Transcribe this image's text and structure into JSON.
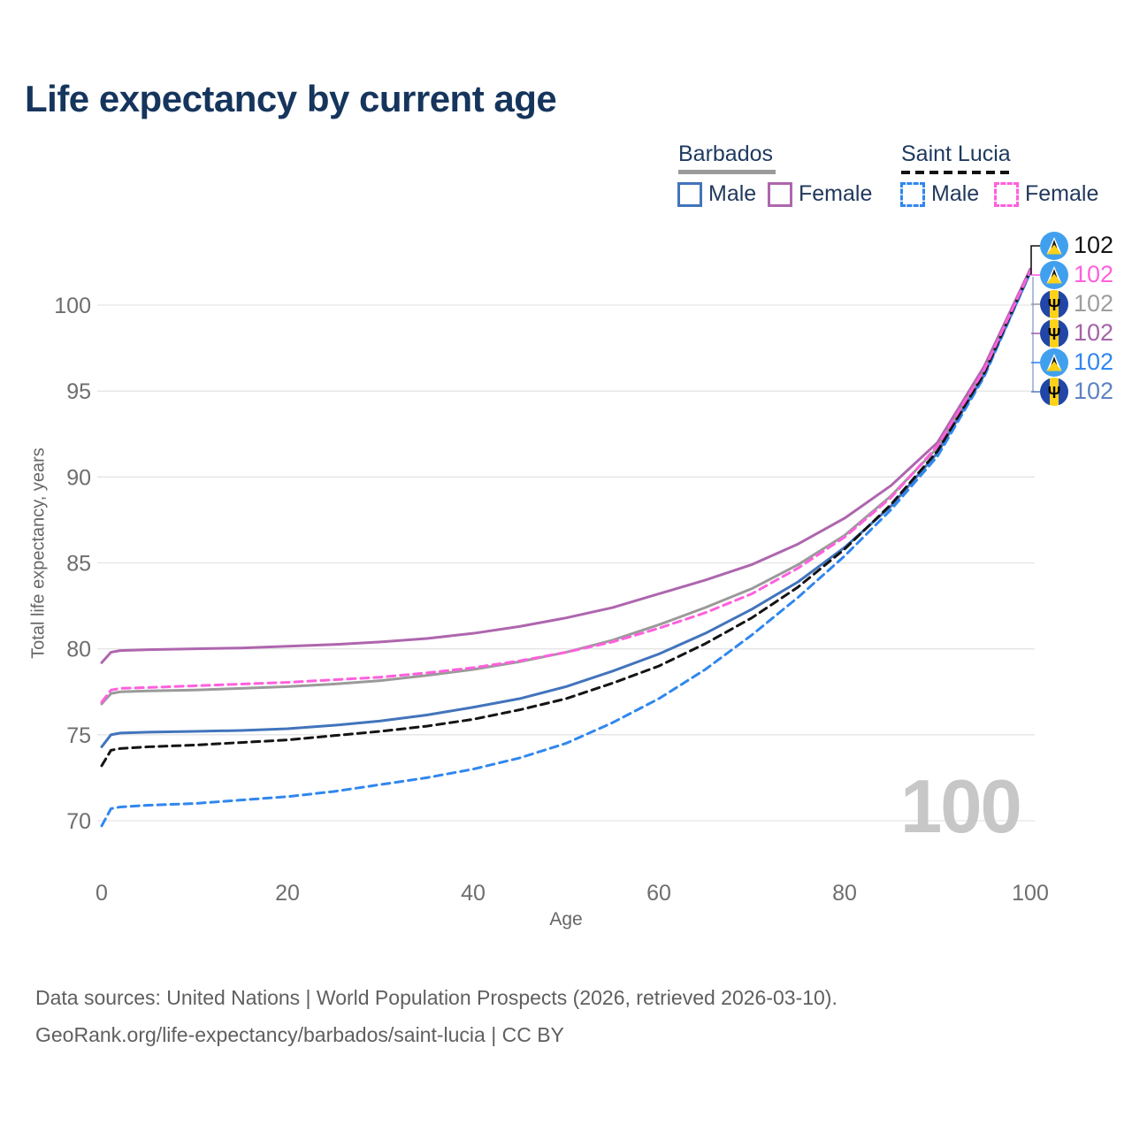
{
  "title": "Life expectancy by current age",
  "legend": {
    "groups": [
      {
        "label": "Barbados",
        "line_style": "solid",
        "underline_color": "#9a9a9a",
        "items": [
          {
            "label": "Male",
            "color": "#4274bc"
          },
          {
            "label": "Female",
            "color": "#ae66ae"
          }
        ]
      },
      {
        "label": "Saint Lucia",
        "line_style": "dashed",
        "underline_color": "#121212",
        "items": [
          {
            "label": "Male",
            "color": "#3087ee"
          },
          {
            "label": "Female",
            "color": "#ff60dd"
          }
        ]
      }
    ]
  },
  "watermark": "100",
  "end_labels": [
    {
      "flag": "saint-lucia",
      "series": "Saint Lucia total",
      "value": "102",
      "color": "#141414"
    },
    {
      "flag": "saint-lucia",
      "series": "Saint Lucia female",
      "value": "102",
      "color": "#ff60dd"
    },
    {
      "flag": "barbados",
      "series": "Barbados total",
      "value": "102",
      "color": "#9e9e9e"
    },
    {
      "flag": "barbados",
      "series": "Barbados female",
      "value": "102",
      "color": "#a463a8"
    },
    {
      "flag": "saint-lucia",
      "series": "Saint Lucia male",
      "value": "102",
      "color": "#3087ee"
    },
    {
      "flag": "barbados",
      "series": "Barbados male",
      "value": "102",
      "color": "#5d82c4"
    }
  ],
  "footer": {
    "line1": "Data sources: United Nations | World Population Prospects (2026, retrieved 2026-03-10).",
    "line2": "GeoRank.org/life-expectancy/barbados/saint-lucia | CC BY"
  },
  "chart_data": {
    "type": "line",
    "title": "Life expectancy by current age",
    "xlabel": "Age",
    "ylabel": "Total life expectancy, years",
    "xlim": [
      0,
      100
    ],
    "ylim": [
      70,
      100
    ],
    "grid": true,
    "xticks": [
      0,
      20,
      40,
      60,
      80,
      100
    ],
    "yticks": [
      70,
      75,
      80,
      85,
      90,
      95,
      100
    ],
    "legend_position": "top-right",
    "x": [
      0,
      1,
      2,
      5,
      10,
      15,
      20,
      25,
      30,
      35,
      40,
      45,
      50,
      55,
      60,
      65,
      70,
      75,
      80,
      85,
      90,
      95,
      100
    ],
    "series": [
      {
        "name": "Barbados total",
        "country": "Barbados",
        "sex": "both",
        "color": "#9a9a9a",
        "dash": false,
        "values": [
          76.8,
          77.4,
          77.5,
          77.55,
          77.6,
          77.7,
          77.8,
          77.95,
          78.15,
          78.45,
          78.8,
          79.25,
          79.8,
          80.5,
          81.4,
          82.4,
          83.5,
          84.9,
          86.6,
          88.9,
          91.7,
          96.1,
          101.9
        ]
      },
      {
        "name": "Barbados male",
        "country": "Barbados",
        "sex": "male",
        "color": "#4274bc",
        "dash": false,
        "values": [
          74.3,
          75.0,
          75.1,
          75.15,
          75.2,
          75.25,
          75.35,
          75.55,
          75.8,
          76.15,
          76.6,
          77.1,
          77.8,
          78.7,
          79.7,
          80.9,
          82.3,
          83.9,
          85.9,
          88.3,
          91.4,
          95.9,
          101.9
        ]
      },
      {
        "name": "Barbados female",
        "country": "Barbados",
        "sex": "female",
        "color": "#ae66ae",
        "dash": false,
        "values": [
          79.2,
          79.8,
          79.9,
          79.95,
          80.0,
          80.05,
          80.15,
          80.25,
          80.4,
          80.6,
          80.9,
          81.3,
          81.8,
          82.4,
          83.2,
          84.0,
          84.9,
          86.1,
          87.6,
          89.5,
          92.0,
          96.4,
          102.1
        ]
      },
      {
        "name": "Saint Lucia male",
        "country": "Saint Lucia",
        "sex": "male",
        "color": "#3087ee",
        "dash": true,
        "values": [
          69.7,
          70.7,
          70.8,
          70.9,
          71.0,
          71.2,
          71.4,
          71.7,
          72.1,
          72.5,
          73.0,
          73.65,
          74.5,
          75.7,
          77.1,
          78.8,
          80.8,
          83.0,
          85.4,
          88.1,
          91.2,
          95.8,
          101.9
        ]
      },
      {
        "name": "Saint Lucia total",
        "country": "Saint Lucia",
        "sex": "both",
        "color": "#141414",
        "dash": true,
        "values": [
          73.2,
          74.1,
          74.2,
          74.3,
          74.4,
          74.55,
          74.7,
          74.95,
          75.2,
          75.5,
          75.9,
          76.45,
          77.1,
          78.0,
          79.0,
          80.3,
          81.8,
          83.6,
          85.8,
          88.4,
          91.5,
          96.0,
          102.0
        ]
      },
      {
        "name": "Saint Lucia female",
        "country": "Saint Lucia",
        "sex": "female",
        "color": "#ff60dd",
        "dash": true,
        "values": [
          76.9,
          77.6,
          77.7,
          77.75,
          77.85,
          77.95,
          78.05,
          78.2,
          78.35,
          78.6,
          78.9,
          79.3,
          79.8,
          80.4,
          81.2,
          82.1,
          83.2,
          84.7,
          86.5,
          88.8,
          91.8,
          96.2,
          102.0
        ]
      }
    ]
  }
}
